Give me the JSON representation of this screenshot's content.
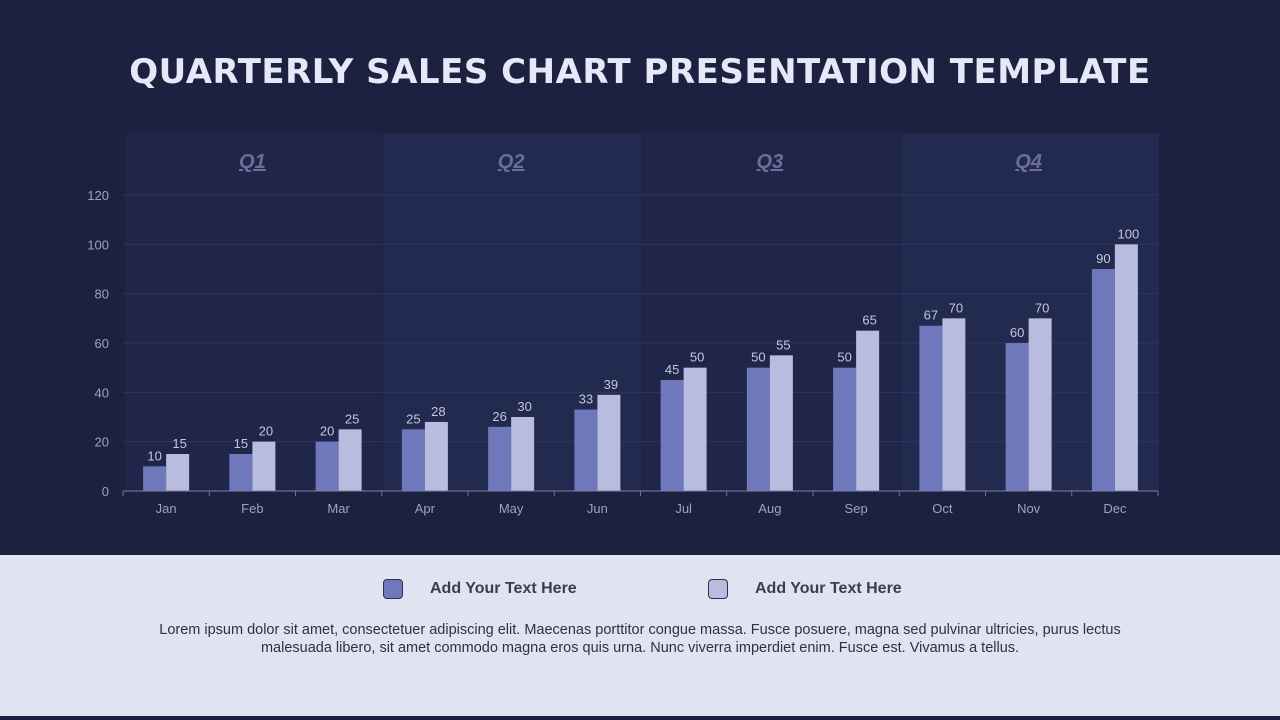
{
  "title": "QUARTERLY SALES CHART PRESENTATION TEMPLATE",
  "chart_data": {
    "type": "bar",
    "quarters": [
      "Q1",
      "Q2",
      "Q3",
      "Q4"
    ],
    "categories": [
      "Jan",
      "Feb",
      "Mar",
      "Apr",
      "May",
      "Jun",
      "Jul",
      "Aug",
      "Sep",
      "Oct",
      "Nov",
      "Dec"
    ],
    "series": [
      {
        "values": [
          10,
          15,
          20,
          25,
          26,
          33,
          45,
          50,
          50,
          67,
          60,
          90
        ],
        "color": "#6f78ba"
      },
      {
        "values": [
          15,
          20,
          25,
          28,
          30,
          39,
          50,
          55,
          65,
          70,
          70,
          100
        ],
        "color": "#b8bcde"
      }
    ],
    "yticks": [
      0,
      20,
      40,
      60,
      80,
      100,
      120
    ],
    "ylim": [
      0,
      120
    ],
    "grid": true,
    "data_labels": true
  },
  "legend": [
    {
      "label": "Add Your Text Here",
      "color": "#6f78ba"
    },
    {
      "label": "Add Your Text Here",
      "color": "#b8bcde"
    }
  ],
  "description": "Lorem ipsum dolor sit amet, consectetuer adipiscing elit. Maecenas porttitor congue massa. Fusce posuere, magna sed pulvinar ultricies, purus lectus malesuada libero, sit amet commodo magna eros quis urna. Nunc viverra imperdiet enim. Fusce est. Vivamus a tellus."
}
